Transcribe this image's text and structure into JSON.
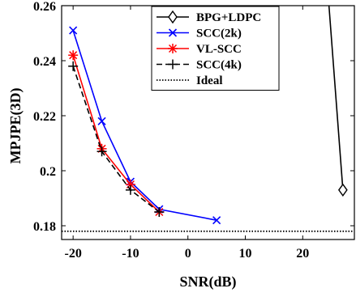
{
  "chart_data": {
    "type": "line",
    "xlabel": "SNR(dB)",
    "ylabel": "MPJPE(3D)",
    "xlim": [
      -22,
      29
    ],
    "ylim": [
      0.175,
      0.26
    ],
    "xticks": [
      -20,
      -10,
      0,
      10,
      20
    ],
    "xtick_labels": [
      "-20",
      "-10",
      "0",
      "10",
      "20"
    ],
    "yticks": [
      0.18,
      0.2,
      0.22,
      0.24,
      0.26
    ],
    "ytick_labels": [
      "0.18",
      "0.2",
      "0.22",
      "0.24",
      "0.26"
    ],
    "grid": false,
    "legend_position": "top-right",
    "series": [
      {
        "name": "BPG+LDPC",
        "color": "#000000",
        "line_style": "solid",
        "marker": "diamond",
        "x": [
          24.5,
          27
        ],
        "y": [
          0.262,
          0.193
        ],
        "marker_x": [
          27
        ],
        "marker_y": [
          0.193
        ]
      },
      {
        "name": "SCC(2k)",
        "color": "#0000ff",
        "line_style": "solid",
        "marker": "x",
        "x": [
          -20,
          -15,
          -10,
          -5,
          5
        ],
        "y": [
          0.251,
          0.218,
          0.196,
          0.186,
          0.182
        ]
      },
      {
        "name": "VL-SCC",
        "color": "#ff0000",
        "line_style": "solid",
        "marker": "asterisk",
        "x": [
          -20,
          -15,
          -10,
          -5
        ],
        "y": [
          0.242,
          0.208,
          0.195,
          0.185
        ]
      },
      {
        "name": "SCC(4k)",
        "color": "#000000",
        "line_style": "dashed",
        "marker": "plus",
        "x": [
          -20,
          -15,
          -10,
          -5
        ],
        "y": [
          0.238,
          0.207,
          0.193,
          0.185
        ]
      },
      {
        "name": "Ideal",
        "color": "#000000",
        "line_style": "dotted",
        "marker": "none",
        "x": [
          -22,
          29
        ],
        "y": [
          0.178,
          0.178
        ]
      }
    ]
  }
}
